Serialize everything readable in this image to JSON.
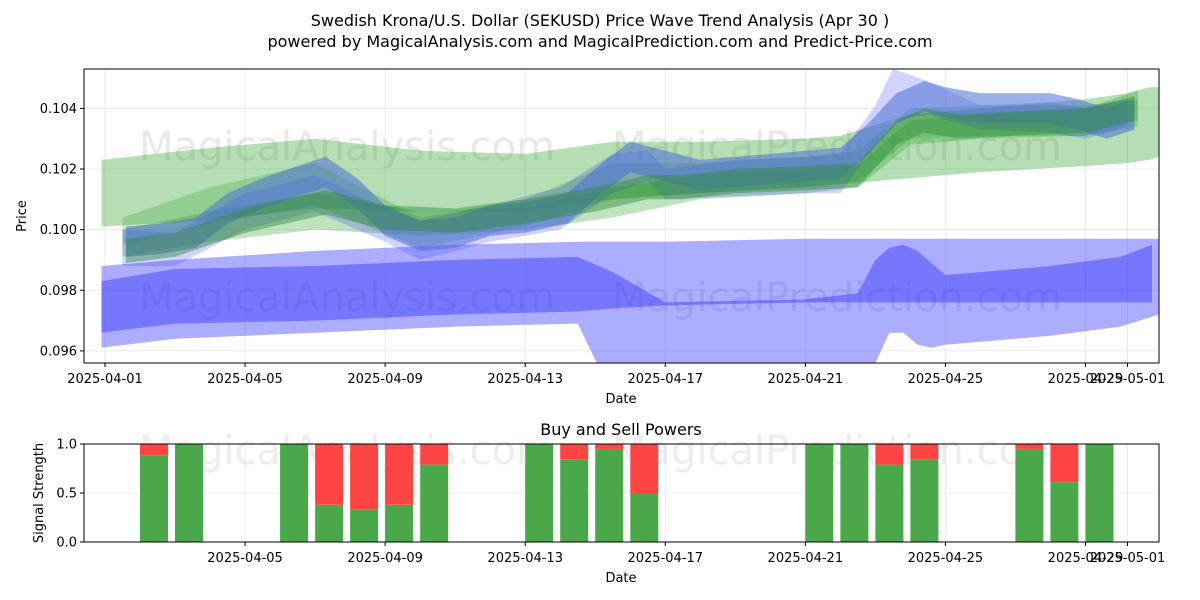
{
  "chart_data": [
    {
      "type": "area",
      "title_line1": "Swedish Krona/U.S. Dollar (SEKUSD) Price Wave Trend Analysis (Apr 30 )",
      "title_line2": "powered by MagicalAnalysis.com and MagicalPrediction.com and Predict-Price.com",
      "xlabel": "Date",
      "ylabel": "Price",
      "xlim_days": [
        -0.6,
        30.1
      ],
      "ylim": [
        0.0956,
        0.1053
      ],
      "x_ticks": [
        {
          "day": 0,
          "label": "2025-04-01"
        },
        {
          "day": 4,
          "label": "2025-04-05"
        },
        {
          "day": 8,
          "label": "2025-04-09"
        },
        {
          "day": 12,
          "label": "2025-04-13"
        },
        {
          "day": 16,
          "label": "2025-04-17"
        },
        {
          "day": 20,
          "label": "2025-04-21"
        },
        {
          "day": 24,
          "label": "2025-04-25"
        },
        {
          "day": 28,
          "label": "2025-04-29"
        },
        {
          "day": 29.2,
          "label": "2025-05-01"
        }
      ],
      "y_ticks": [
        {
          "value": 0.096,
          "label": "0.096"
        },
        {
          "value": 0.098,
          "label": "0.098"
        },
        {
          "value": 0.1,
          "label": "0.100"
        },
        {
          "value": 0.102,
          "label": "0.102"
        },
        {
          "value": 0.104,
          "label": "0.104"
        }
      ],
      "watermarks": [
        "MagicalAnalysis.com",
        "MagicalPrediction.com"
      ],
      "bands": [
        {
          "name": "green-wide-band",
          "color": "#2ca02c",
          "opacity": 0.35,
          "x": [
            -0.1,
            3,
            6,
            9,
            12,
            14.5,
            17,
            20,
            21,
            23,
            25,
            28,
            29.2,
            29.8,
            30.1
          ],
          "upper": [
            0.1023,
            0.1027,
            0.103,
            0.1026,
            0.1025,
            0.1029,
            0.1029,
            0.103,
            0.1031,
            0.1038,
            0.104,
            0.1043,
            0.1045,
            0.1047,
            0.1047
          ],
          "lower": [
            0.1001,
            0.1003,
            0.1007,
            0.1006,
            0.1006,
            0.101,
            0.1012,
            0.1014,
            0.1015,
            0.1017,
            0.1019,
            0.1021,
            0.1022,
            0.1023,
            0.1024
          ]
        },
        {
          "name": "green-band-2",
          "color": "#2ca02c",
          "opacity": 0.3,
          "x": [
            0.5,
            3,
            6,
            9,
            12,
            14.5,
            17,
            20,
            21.5,
            23,
            25,
            28,
            29.5
          ],
          "upper": [
            0.1,
            0.1006,
            0.1012,
            0.1006,
            0.1007,
            0.1014,
            0.1018,
            0.102,
            0.1021,
            0.1036,
            0.1038,
            0.104,
            0.1046
          ],
          "lower": [
            0.0991,
            0.0996,
            0.1,
            0.0998,
            0.1,
            0.1004,
            0.101,
            0.1012,
            0.1014,
            0.1028,
            0.103,
            0.1031,
            0.1036
          ]
        },
        {
          "name": "green-band-3",
          "color": "#2ca02c",
          "opacity": 0.25,
          "x": [
            0.5,
            3,
            6,
            9,
            12,
            14.5,
            17,
            20,
            21.5,
            23,
            25,
            28,
            29.5
          ],
          "upper": [
            0.1004,
            0.1014,
            0.1022,
            0.1004,
            0.101,
            0.1022,
            0.1022,
            0.1024,
            0.1026,
            0.104,
            0.1041,
            0.1041,
            0.1043
          ],
          "lower": [
            0.0995,
            0.1002,
            0.1008,
            0.0994,
            0.1001,
            0.101,
            0.1012,
            0.1014,
            0.1016,
            0.103,
            0.1031,
            0.1031,
            0.1034
          ]
        },
        {
          "name": "blue-lower-band",
          "color": "#3333ff",
          "opacity": 0.4,
          "x": [
            -0.1,
            2,
            6,
            10,
            13.5,
            14.3,
            16,
            20,
            21.5,
            22,
            22.4,
            22.8,
            23.2,
            23.6,
            24,
            25,
            27,
            29,
            30.1
          ],
          "upper": [
            0.0988,
            0.099,
            0.0993,
            0.0995,
            0.0996,
            0.0996,
            0.0996,
            0.0997,
            0.0997,
            0.0997,
            0.0997,
            0.0997,
            0.0997,
            0.0997,
            0.0997,
            0.0997,
            0.0997,
            0.0997,
            0.0997
          ],
          "lower": [
            0.0961,
            0.0964,
            0.0966,
            0.0968,
            0.0969,
            0.095,
            0.095,
            0.095,
            0.095,
            0.0956,
            0.0966,
            0.0966,
            0.0962,
            0.0961,
            0.0962,
            0.0963,
            0.0965,
            0.0968,
            0.0972
          ]
        },
        {
          "name": "blue-main-band",
          "color": "#3333ff",
          "opacity": 0.45,
          "x": [
            -0.1,
            2,
            6,
            10,
            13.5,
            14.5,
            16,
            20,
            21.5,
            22,
            22.4,
            22.8,
            23.2,
            23.6,
            24,
            25,
            27,
            29,
            29.9
          ],
          "upper": [
            0.0983,
            0.0987,
            0.0988,
            0.099,
            0.0991,
            0.0986,
            0.0976,
            0.0977,
            0.0979,
            0.099,
            0.0994,
            0.0995,
            0.0993,
            0.0989,
            0.0985,
            0.0986,
            0.0988,
            0.0991,
            0.0995
          ],
          "lower": [
            0.0966,
            0.0969,
            0.097,
            0.0972,
            0.0973,
            0.0974,
            0.0975,
            0.0976,
            0.0976,
            0.0976,
            0.0976,
            0.0976,
            0.0976,
            0.0976,
            0.0976,
            0.0976,
            0.0976,
            0.0976,
            0.0976
          ]
        },
        {
          "name": "blue-upper-band",
          "color": "#3333ff",
          "opacity": 0.22,
          "x": [
            0.5,
            2,
            4,
            6,
            8,
            9,
            11,
            13,
            14.5,
            15.5,
            16,
            18,
            20,
            21,
            22,
            22.5,
            23.5,
            25,
            27,
            28,
            29.2
          ],
          "upper": [
            0.1,
            0.0999,
            0.1012,
            0.1018,
            0.1007,
            0.1003,
            0.1008,
            0.1014,
            0.1025,
            0.1026,
            0.102,
            0.1023,
            0.1024,
            0.1025,
            0.1041,
            0.1053,
            0.1049,
            0.1041,
            0.1042,
            0.104,
            0.1043
          ],
          "lower": [
            0.0988,
            0.0988,
            0.1,
            0.1006,
            0.0996,
            0.099,
            0.0996,
            0.1,
            0.1012,
            0.1016,
            0.101,
            0.1011,
            0.1012,
            0.1012,
            0.1028,
            0.1036,
            0.1038,
            0.1033,
            0.1032,
            0.103,
            0.1034
          ]
        }
      ],
      "waves": [
        {
          "name": "blue-wave",
          "color": "#4a6fd6",
          "opacity": 0.55,
          "thickness": 0.0005,
          "x": [
            0.6,
            1.6,
            2.6,
            3.5,
            4.5,
            5.5,
            6.3,
            7.2,
            8.0,
            9.0,
            10.0,
            11.0,
            12.0,
            13.2,
            14.3,
            15.0,
            16.0,
            17.0,
            18.0,
            19.0,
            20.0,
            21.0,
            21.8,
            22.6,
            23.4,
            24.0,
            25.0,
            26.0,
            27.0,
            27.8,
            28.6,
            29.4
          ],
          "y": [
            0.0996,
            0.0997,
            0.0999,
            0.1007,
            0.1012,
            0.1016,
            0.1019,
            0.1012,
            0.1003,
            0.0998,
            0.0999,
            0.1003,
            0.1004,
            0.1007,
            0.1018,
            0.1024,
            0.1021,
            0.1018,
            0.1019,
            0.102,
            0.1021,
            0.1022,
            0.103,
            0.104,
            0.1044,
            0.1042,
            0.104,
            0.104,
            0.104,
            0.1038,
            0.1035,
            0.1038
          ]
        },
        {
          "name": "green-wave",
          "color": "#2e8b3a",
          "opacity": 0.45,
          "thickness": 0.0004,
          "x": [
            0.6,
            2,
            4,
            6.3,
            8,
            10,
            12,
            14,
            15.5,
            16.5,
            18,
            20,
            21.5,
            22.6,
            23.4,
            24.4,
            26,
            28,
            29.4
          ],
          "y": [
            0.0993,
            0.0995,
            0.1003,
            0.1009,
            0.1004,
            0.1003,
            0.1006,
            0.101,
            0.1014,
            0.1014,
            0.1016,
            0.1017,
            0.1018,
            0.1032,
            0.1036,
            0.1034,
            0.1035,
            0.1036,
            0.104
          ]
        }
      ]
    },
    {
      "type": "bar",
      "title": "Buy and Sell Powers",
      "xlabel": "Date",
      "ylabel": "Signal Strength",
      "xlim_days": [
        -0.6,
        30.1
      ],
      "ylim": [
        0,
        1
      ],
      "buy_color": "#4aa84a",
      "sell_color": "#ff4444",
      "x_ticks": [
        {
          "day": 4,
          "label": "2025-04-05"
        },
        {
          "day": 8,
          "label": "2025-04-09"
        },
        {
          "day": 12,
          "label": "2025-04-13"
        },
        {
          "day": 16,
          "label": "2025-04-17"
        },
        {
          "day": 20,
          "label": "2025-04-21"
        },
        {
          "day": 24,
          "label": "2025-04-25"
        },
        {
          "day": 28,
          "label": "2025-04-29"
        },
        {
          "day": 29.2,
          "label": "2025-05-01"
        }
      ],
      "y_ticks": [
        {
          "value": 0.0,
          "label": "0.0"
        },
        {
          "value": 0.5,
          "label": "0.5"
        },
        {
          "value": 1.0,
          "label": "1.0"
        }
      ],
      "bars": [
        {
          "day": 1.4,
          "buy": 0.88
        },
        {
          "day": 2.4,
          "buy": 1.0
        },
        {
          "day": 5.4,
          "buy": 1.0
        },
        {
          "day": 6.4,
          "buy": 0.38
        },
        {
          "day": 7.4,
          "buy": 0.33
        },
        {
          "day": 8.4,
          "buy": 0.38
        },
        {
          "day": 9.4,
          "buy": 0.79
        },
        {
          "day": 12.4,
          "buy": 1.0
        },
        {
          "day": 13.4,
          "buy": 0.84
        },
        {
          "day": 14.4,
          "buy": 0.95
        },
        {
          "day": 15.4,
          "buy": 0.5
        },
        {
          "day": 20.4,
          "buy": 1.0
        },
        {
          "day": 21.4,
          "buy": 1.0
        },
        {
          "day": 22.4,
          "buy": 0.79
        },
        {
          "day": 23.4,
          "buy": 0.84
        },
        {
          "day": 26.4,
          "buy": 0.95
        },
        {
          "day": 27.4,
          "buy": 0.61
        },
        {
          "day": 28.4,
          "buy": 1.0
        }
      ]
    }
  ]
}
